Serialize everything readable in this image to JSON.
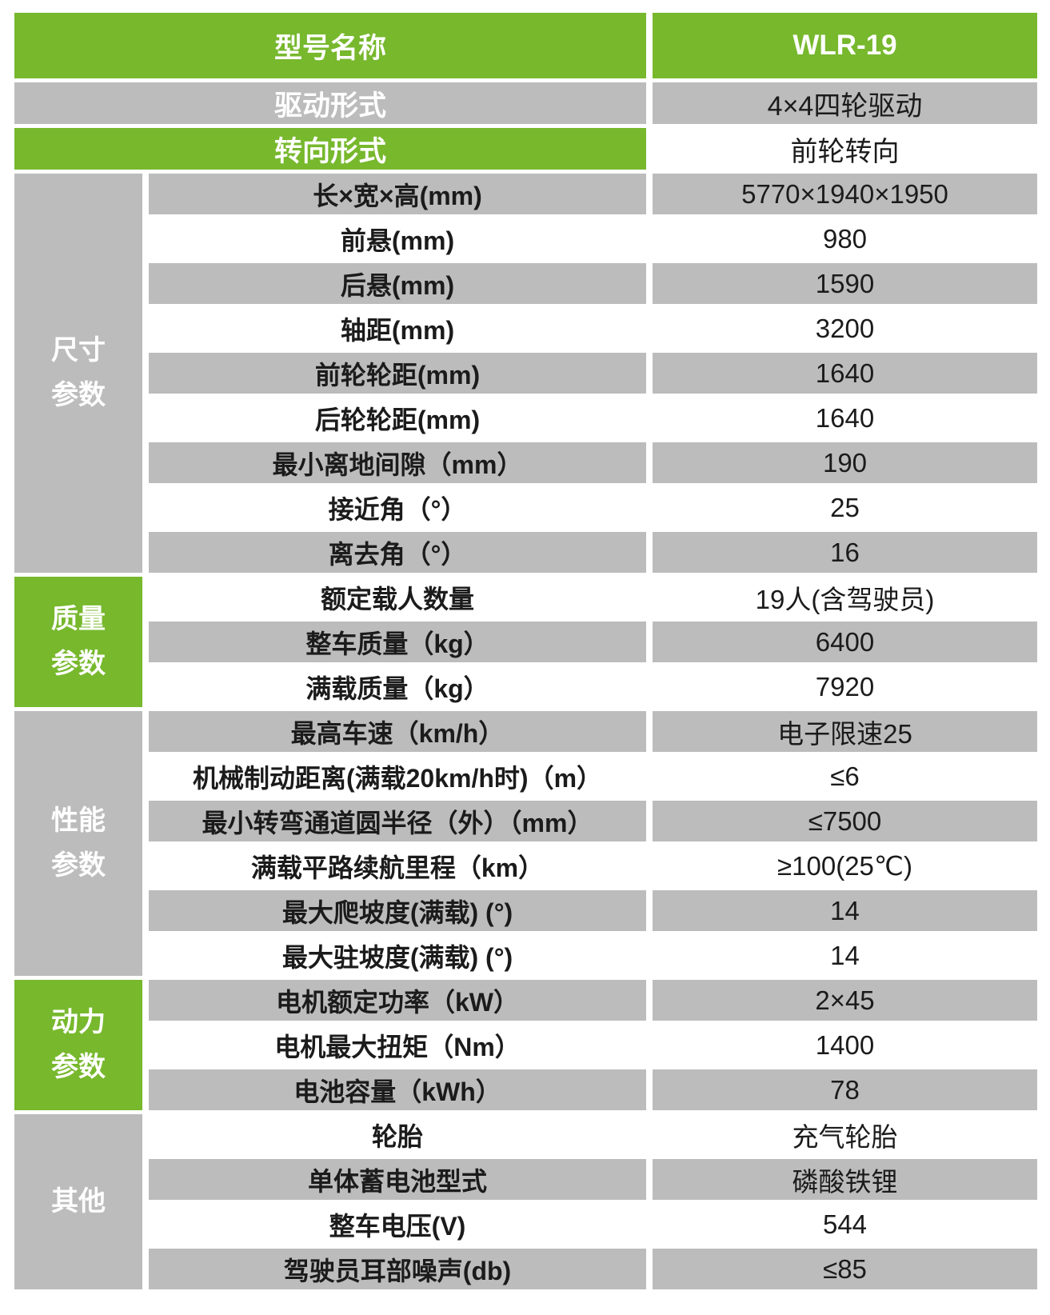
{
  "colors": {
    "green": "#77b82d",
    "gray": "#bdbcbc",
    "ink": "#1b1b1b"
  },
  "table": {
    "header_rows": [
      {
        "label": "型号名称",
        "value": "WLR-19"
      },
      {
        "label": "驱动形式",
        "value": "4×4四轮驱动"
      },
      {
        "label": "转向形式",
        "value": "前轮转向"
      }
    ],
    "sections": [
      {
        "group": {
          "lines": [
            "尺寸",
            "参数"
          ]
        },
        "rows": [
          {
            "label": "长×宽×高(mm)",
            "value": "5770×1940×1950"
          },
          {
            "label": "前悬(mm)",
            "value": "980"
          },
          {
            "label": "后悬(mm)",
            "value": "1590"
          },
          {
            "label": "轴距(mm)",
            "value": "3200"
          },
          {
            "label": "前轮轮距(mm)",
            "value": "1640"
          },
          {
            "label": "后轮轮距(mm)",
            "value": "1640"
          },
          {
            "label": "最小离地间隙（mm）",
            "value": "190"
          },
          {
            "label": "接近角（°）",
            "value": "25"
          },
          {
            "label": "离去角（°）",
            "value": "16"
          }
        ]
      },
      {
        "group": {
          "lines": [
            "质量",
            "参数"
          ]
        },
        "rows": [
          {
            "label": "额定载人数量",
            "value": "19人(含驾驶员)"
          },
          {
            "label": "整车质量（kg）",
            "value": "6400"
          },
          {
            "label": "满载质量（kg）",
            "value": "7920"
          }
        ]
      },
      {
        "group": {
          "lines": [
            "性能",
            "参数"
          ]
        },
        "rows": [
          {
            "label": "最高车速（km/h）",
            "value": "电子限速25"
          },
          {
            "label": "机械制动距离(满载20km/h时)（m）",
            "value": "≤6"
          },
          {
            "label": "最小转弯通道圆半径（外）（mm）",
            "value": "≤7500"
          },
          {
            "label": "满载平路续航里程（km）",
            "value": "≥100(25℃)"
          },
          {
            "label": "最大爬坡度(满载) (°)",
            "value": "14"
          },
          {
            "label": "最大驻坡度(满载) (°)",
            "value": "14"
          }
        ]
      },
      {
        "group": {
          "lines": [
            "动力",
            "参数"
          ]
        },
        "rows": [
          {
            "label": "电机额定功率（kW）",
            "value": "2×45"
          },
          {
            "label": "电机最大扭矩（Nm）",
            "value": "1400"
          },
          {
            "label": "电池容量（kWh）",
            "value": "78"
          }
        ]
      },
      {
        "group": {
          "lines": [
            "其他"
          ]
        },
        "rows": [
          {
            "label": "轮胎",
            "value": "充气轮胎"
          },
          {
            "label": "单体蓄电池型式",
            "value": "磷酸铁锂"
          },
          {
            "label": "整车电压(V)",
            "value": "544"
          },
          {
            "label": "驾驶员耳部噪声(db)",
            "value": "≤85"
          }
        ]
      }
    ]
  }
}
